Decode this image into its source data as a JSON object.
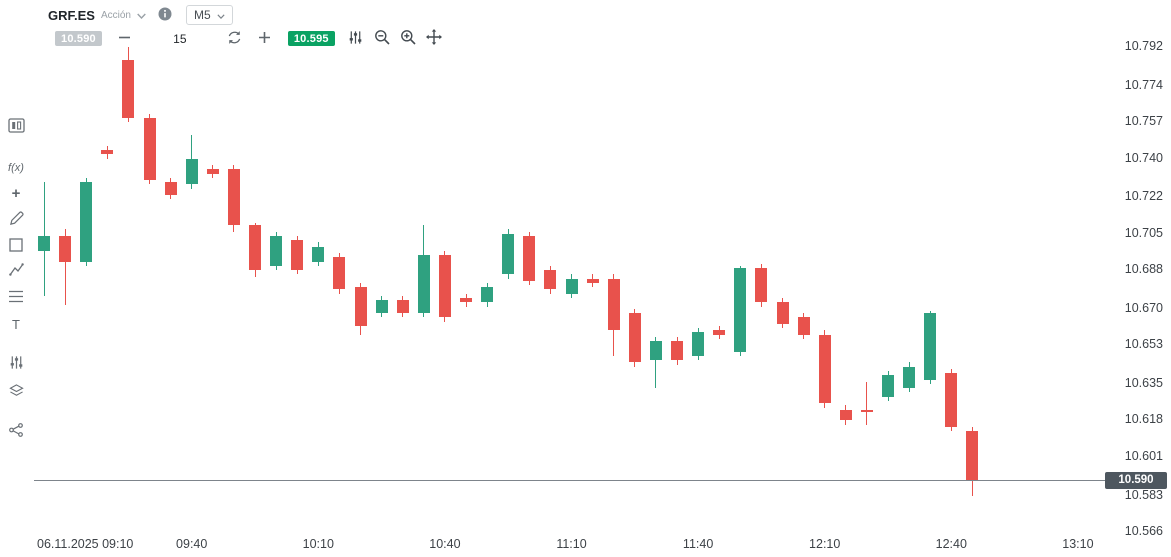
{
  "header": {
    "symbol": "GRF.ES",
    "instrument_type": "Acción",
    "timeframe": "M5"
  },
  "trade_panel": {
    "sell_price": "10.590",
    "volume": "15",
    "buy_price": "10.595"
  },
  "icon_glyphs": {
    "function": "f(x)",
    "add": "+",
    "text": "T"
  },
  "left_toolbar": {
    "tools": [
      "chart-style",
      "function",
      "add",
      "draw",
      "shapes",
      "trend-lines",
      "fibonacci",
      "text",
      "indicators",
      "objects",
      "share"
    ]
  },
  "colors": {
    "buy_badge": "#0aa263",
    "sell_badge": "#c3c8cc",
    "price_badge": "#4e575f",
    "up": "#2fa180",
    "down": "#e8524c"
  },
  "chart_data": {
    "type": "candlestick",
    "symbol": "GRF.ES",
    "timeframe_minutes": 5,
    "current_price": 10.59,
    "current_price_label": "10.590",
    "y_range": [
      10.566,
      10.792
    ],
    "price_axis_ticks": [
      10.792,
      10.774,
      10.757,
      10.74,
      10.722,
      10.705,
      10.688,
      10.67,
      10.653,
      10.635,
      10.618,
      10.601,
      10.583,
      10.566
    ],
    "time_axis_ticks": [
      "06.11.2025 09:10",
      "09:40",
      "10:10",
      "10:40",
      "11:10",
      "11:40",
      "12:10",
      "12:40",
      "13:10"
    ],
    "colors": {
      "up": "#2fa180",
      "down": "#e8524c"
    },
    "candles": [
      {
        "t": "09:05",
        "o": 10.697,
        "h": 10.729,
        "l": 10.676,
        "c": 10.704
      },
      {
        "t": "09:10",
        "o": 10.704,
        "h": 10.707,
        "l": 10.672,
        "c": 10.692
      },
      {
        "t": "09:15",
        "o": 10.692,
        "h": 10.731,
        "l": 10.69,
        "c": 10.729
      },
      {
        "t": "09:20",
        "o": 10.744,
        "h": 10.746,
        "l": 10.74,
        "c": 10.742
      },
      {
        "t": "09:25",
        "o": 10.786,
        "h": 10.792,
        "l": 10.757,
        "c": 10.759
      },
      {
        "t": "09:30",
        "o": 10.759,
        "h": 10.761,
        "l": 10.728,
        "c": 10.73
      },
      {
        "t": "09:35",
        "o": 10.729,
        "h": 10.731,
        "l": 10.721,
        "c": 10.723
      },
      {
        "t": "09:40",
        "o": 10.728,
        "h": 10.751,
        "l": 10.726,
        "c": 10.74
      },
      {
        "t": "09:45",
        "o": 10.735,
        "h": 10.737,
        "l": 10.731,
        "c": 10.733
      },
      {
        "t": "09:50",
        "o": 10.735,
        "h": 10.737,
        "l": 10.706,
        "c": 10.709
      },
      {
        "t": "09:55",
        "o": 10.709,
        "h": 10.71,
        "l": 10.685,
        "c": 10.688
      },
      {
        "t": "10:00",
        "o": 10.69,
        "h": 10.706,
        "l": 10.688,
        "c": 10.704
      },
      {
        "t": "10:05",
        "o": 10.702,
        "h": 10.704,
        "l": 10.686,
        "c": 10.688
      },
      {
        "t": "10:10",
        "o": 10.692,
        "h": 10.701,
        "l": 10.69,
        "c": 10.699
      },
      {
        "t": "10:15",
        "o": 10.694,
        "h": 10.696,
        "l": 10.677,
        "c": 10.679
      },
      {
        "t": "10:20",
        "o": 10.68,
        "h": 10.682,
        "l": 10.658,
        "c": 10.662
      },
      {
        "t": "10:25",
        "o": 10.668,
        "h": 10.676,
        "l": 10.666,
        "c": 10.674
      },
      {
        "t": "10:30",
        "o": 10.674,
        "h": 10.676,
        "l": 10.666,
        "c": 10.668
      },
      {
        "t": "10:35",
        "o": 10.668,
        "h": 10.709,
        "l": 10.666,
        "c": 10.695
      },
      {
        "t": "10:40",
        "o": 10.695,
        "h": 10.697,
        "l": 10.664,
        "c": 10.666
      },
      {
        "t": "10:45",
        "o": 10.675,
        "h": 10.677,
        "l": 10.671,
        "c": 10.673
      },
      {
        "t": "10:50",
        "o": 10.673,
        "h": 10.682,
        "l": 10.671,
        "c": 10.68
      },
      {
        "t": "10:55",
        "o": 10.686,
        "h": 10.707,
        "l": 10.684,
        "c": 10.705
      },
      {
        "t": "11:00",
        "o": 10.704,
        "h": 10.706,
        "l": 10.681,
        "c": 10.683
      },
      {
        "t": "11:05",
        "o": 10.688,
        "h": 10.69,
        "l": 10.677,
        "c": 10.679
      },
      {
        "t": "11:10",
        "o": 10.677,
        "h": 10.686,
        "l": 10.675,
        "c": 10.684
      },
      {
        "t": "11:15",
        "o": 10.684,
        "h": 10.686,
        "l": 10.68,
        "c": 10.682
      },
      {
        "t": "11:20",
        "o": 10.684,
        "h": 10.686,
        "l": 10.648,
        "c": 10.66
      },
      {
        "t": "11:25",
        "o": 10.668,
        "h": 10.67,
        "l": 10.643,
        "c": 10.645
      },
      {
        "t": "11:30",
        "o": 10.646,
        "h": 10.657,
        "l": 10.633,
        "c": 10.655
      },
      {
        "t": "11:35",
        "o": 10.655,
        "h": 10.657,
        "l": 10.644,
        "c": 10.646
      },
      {
        "t": "11:40",
        "o": 10.648,
        "h": 10.661,
        "l": 10.646,
        "c": 10.659
      },
      {
        "t": "11:45",
        "o": 10.66,
        "h": 10.662,
        "l": 10.656,
        "c": 10.658
      },
      {
        "t": "11:50",
        "o": 10.65,
        "h": 10.69,
        "l": 10.648,
        "c": 10.689
      },
      {
        "t": "11:55",
        "o": 10.689,
        "h": 10.691,
        "l": 10.671,
        "c": 10.673
      },
      {
        "t": "12:00",
        "o": 10.673,
        "h": 10.675,
        "l": 10.661,
        "c": 10.663
      },
      {
        "t": "12:05",
        "o": 10.666,
        "h": 10.668,
        "l": 10.656,
        "c": 10.658
      },
      {
        "t": "12:10",
        "o": 10.658,
        "h": 10.66,
        "l": 10.624,
        "c": 10.626
      },
      {
        "t": "12:15",
        "o": 10.623,
        "h": 10.625,
        "l": 10.616,
        "c": 10.618
      },
      {
        "t": "12:20",
        "o": 10.623,
        "h": 10.636,
        "l": 10.616,
        "c": 10.622
      },
      {
        "t": "12:25",
        "o": 10.629,
        "h": 10.641,
        "l": 10.627,
        "c": 10.639
      },
      {
        "t": "12:30",
        "o": 10.633,
        "h": 10.645,
        "l": 10.631,
        "c": 10.643
      },
      {
        "t": "12:35",
        "o": 10.637,
        "h": 10.669,
        "l": 10.635,
        "c": 10.668
      },
      {
        "t": "12:40",
        "o": 10.64,
        "h": 10.642,
        "l": 10.613,
        "c": 10.615
      },
      {
        "t": "12:45",
        "o": 10.613,
        "h": 10.615,
        "l": 10.583,
        "c": 10.59
      }
    ]
  }
}
